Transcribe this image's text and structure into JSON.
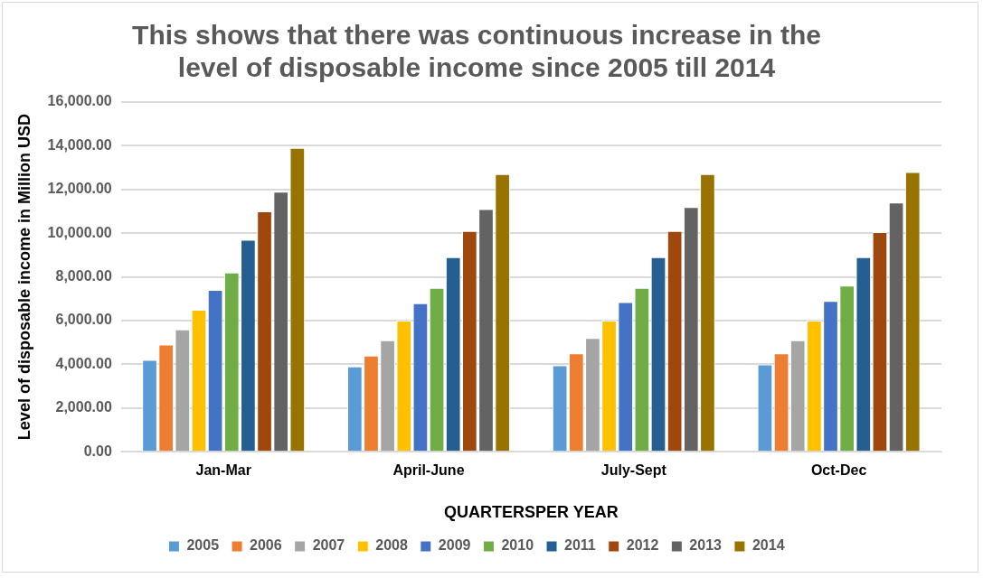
{
  "chart_data": {
    "type": "bar",
    "title": "This shows that there was continuous increase in the level of disposable income since 2005 till 2014",
    "xlabel": "QUARTERSPER YEAR",
    "ylabel": "Level of disposable income in Million USD",
    "categories": [
      "Jan-Mar",
      "April-June",
      "July-Sept",
      "Oct-Dec"
    ],
    "series": [
      {
        "name": "2005",
        "color": "#5b9bd5",
        "values": [
          4200,
          3900,
          3950,
          4000
        ]
      },
      {
        "name": "2006",
        "color": "#ed7d31",
        "values": [
          4900,
          4400,
          4500,
          4500
        ]
      },
      {
        "name": "2007",
        "color": "#a5a5a5",
        "values": [
          5600,
          5100,
          5200,
          5100
        ]
      },
      {
        "name": "2008",
        "color": "#ffc000",
        "values": [
          6500,
          6000,
          6000,
          6000
        ]
      },
      {
        "name": "2009",
        "color": "#4472c4",
        "values": [
          7400,
          6800,
          6850,
          6900
        ]
      },
      {
        "name": "2010",
        "color": "#70ad47",
        "values": [
          8200,
          7500,
          7500,
          7600
        ]
      },
      {
        "name": "2011",
        "color": "#255e91",
        "values": [
          9700,
          8900,
          8900,
          8900
        ]
      },
      {
        "name": "2012",
        "color": "#9e480e",
        "values": [
          11000,
          10100,
          10100,
          10050
        ]
      },
      {
        "name": "2013",
        "color": "#636363",
        "values": [
          11900,
          11100,
          11200,
          11400
        ]
      },
      {
        "name": "2014",
        "color": "#997300",
        "values": [
          13900,
          12700,
          12700,
          12800
        ]
      }
    ],
    "ylim": [
      0,
      16000
    ],
    "yticks": [
      {
        "value": 0,
        "label": "0.00"
      },
      {
        "value": 2000,
        "label": "2,000.00"
      },
      {
        "value": 4000,
        "label": "4,000.00"
      },
      {
        "value": 6000,
        "label": "6,000.00"
      },
      {
        "value": 8000,
        "label": "8,000.00"
      },
      {
        "value": 10000,
        "label": "10,000.00"
      },
      {
        "value": 12000,
        "label": "12,000.00"
      },
      {
        "value": 14000,
        "label": "14,000.00"
      },
      {
        "value": 16000,
        "label": "16,000.00"
      }
    ],
    "grid": "y",
    "legend": "bottom"
  }
}
